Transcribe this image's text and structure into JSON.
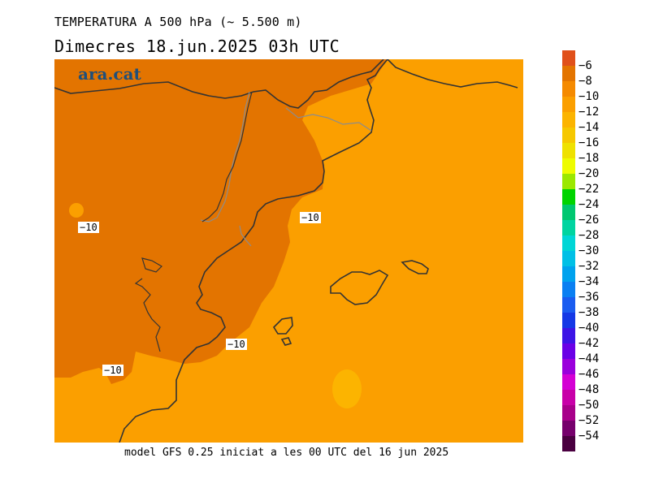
{
  "title": "TEMPERATURA A 500 hPa (~ 5.500 m)",
  "subtitle": "Dimecres  18.jun.2025 03h UTC",
  "footer": "model GFS 0.25 iniciat a les 00 UTC del 16 jun 2025",
  "logo": "ara.cat",
  "contour_labels": [
    "−10",
    "−10",
    "−10",
    "−10"
  ],
  "legend": {
    "labels": [
      "−6",
      "−8",
      "−10",
      "−12",
      "−14",
      "−16",
      "−18",
      "−20",
      "−22",
      "−24",
      "−26",
      "−28",
      "−30",
      "−32",
      "−34",
      "−36",
      "−38",
      "−40",
      "−42",
      "−44",
      "−46",
      "−48",
      "−50",
      "−52",
      "−54"
    ],
    "colors": [
      "#e0501a",
      "#e37400",
      "#f58a00",
      "#fb9f00",
      "#fcb400",
      "#f6c800",
      "#efe100",
      "#eefc00",
      "#9be800",
      "#00d400",
      "#00c770",
      "#00d4a0",
      "#00d6d6",
      "#00c0e6",
      "#00a2ee",
      "#0a7ff2",
      "#1a5cf0",
      "#1438e6",
      "#3c14e6",
      "#6a00e6",
      "#9a00dc",
      "#d400d4",
      "#c800a8",
      "#a8008a",
      "#76006c",
      "#4a0040"
    ]
  },
  "colors": {
    "warm_region": "#e37400",
    "sea_region": "#fb9f00",
    "cool_patch": "#fcb400",
    "coast": "#333333",
    "border": "#8c8c8c"
  }
}
